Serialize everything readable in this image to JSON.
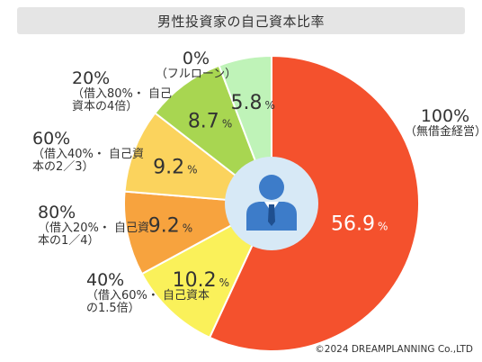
{
  "title": "男性投資家の自己資本比率",
  "copyright": "©2024 DREAMPLANNING Co.,LTD",
  "icon": "businessman-icon",
  "chart_data": {
    "type": "pie",
    "title": "男性投資家の自己資本比率",
    "unit": "%",
    "slices": [
      {
        "value": 56.9,
        "label": "100%",
        "note": "（無借金経営）",
        "color": "#f4512d",
        "text_color": "#ffffff"
      },
      {
        "value": 10.2,
        "label": "40%",
        "note": "（借入60%・ 自己資本の1.5倍）",
        "color": "#faf15a",
        "text_color": "#333333"
      },
      {
        "value": 9.2,
        "label": "80%",
        "note": "（借入20%・ 自己資本の1／4）",
        "color": "#f7a33e",
        "text_color": "#333333"
      },
      {
        "value": 9.2,
        "label": "60%",
        "note": "（借入40%・ 自己資本の2／3）",
        "color": "#fbd35d",
        "text_color": "#333333"
      },
      {
        "value": 8.7,
        "label": "20%",
        "note": "（借入80%・ 自己資本の4倍）",
        "color": "#a8d651",
        "text_color": "#333333"
      },
      {
        "value": 5.8,
        "label": "0%",
        "note": "（フルローン）",
        "color": "#bff3b8",
        "text_color": "#333333"
      }
    ]
  }
}
